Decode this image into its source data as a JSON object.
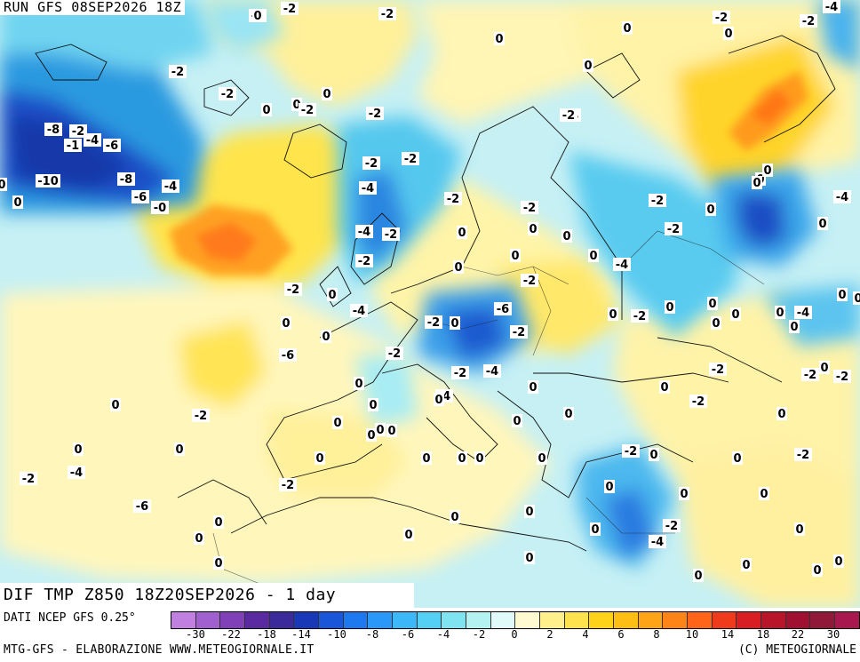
{
  "run_label": "RUN GFS 08SEP2026 18Z",
  "title": "DIF TMP Z850 18Z20SEP2026 - 1 day",
  "source": "DATI NCEP GFS 0.25°",
  "credit": "MTG-GFS - ELABORAZIONE WWW.METEOGIORNALE.IT",
  "copyright": "(C) METEOGIORNALE",
  "legend": {
    "colors": [
      "#c080e0",
      "#a060d0",
      "#8040b8",
      "#5a2aa0",
      "#3a2a9a",
      "#1838b8",
      "#1a56d8",
      "#1e78f0",
      "#2a98f8",
      "#3cb8f8",
      "#54d0f4",
      "#80e4f0",
      "#b4f2f2",
      "#e0fafa",
      "#fffad0",
      "#fff08c",
      "#ffe34e",
      "#ffd21a",
      "#ffbe14",
      "#ffa416",
      "#ff8418",
      "#ff6418",
      "#f03a1c",
      "#d81e22",
      "#b8142a",
      "#a01030",
      "#901838",
      "#a8184e"
    ],
    "tick_labels": [
      "-30",
      "-22",
      "-18",
      "-14",
      "-10",
      "-8",
      "-6",
      "-4",
      "-2",
      "0",
      "2",
      "4",
      "6",
      "8",
      "10",
      "14",
      "18",
      "22",
      "30"
    ]
  },
  "map": {
    "ocean_base": "#bfeef3",
    "land_base": "#fff4b0",
    "value_labels": [
      "-2",
      "-2",
      "-2",
      "-2",
      "-4",
      "-4",
      "-4",
      "-2",
      "-2",
      "-2",
      "0",
      "0",
      "0",
      "0",
      "-2",
      "-2",
      "0",
      "0",
      "0",
      "-2",
      "0",
      "-2",
      "-2",
      "0",
      "-8",
      "-2",
      "-1",
      "-4",
      "-6",
      "-4",
      "-10",
      "-8",
      "-6",
      "-4",
      "-0",
      "0",
      "0",
      "-2",
      "-2",
      "-4",
      "-2",
      "-2",
      "0",
      "-4",
      "-2",
      "0",
      "-2",
      "-4",
      "0",
      "0",
      "0",
      "0",
      "-4",
      "0",
      "-2",
      "-2",
      "0",
      "-6",
      "-2",
      "0",
      "-2",
      "-4",
      "-6",
      "-2",
      "0",
      "0",
      "0",
      "0",
      "-4",
      "0",
      "-2",
      "-2",
      "0",
      "-2",
      "0",
      "-2",
      "0",
      "-2",
      "-2",
      "0",
      "-2",
      "-4",
      "0",
      "0",
      "0",
      "-2",
      "-4",
      "0",
      "0",
      "0",
      "-2",
      "0",
      "0",
      "0",
      "0",
      "-4",
      "-2",
      "-6",
      "-2",
      "0",
      "0",
      "0",
      "0",
      "0",
      "0",
      "0",
      "0",
      "0",
      "0",
      "0",
      "0",
      "0",
      "0",
      "0",
      "0",
      "0",
      "0",
      "0",
      "0",
      "0",
      "0",
      "0",
      "0",
      "0",
      "0",
      "0",
      "0",
      "0",
      "0",
      "0",
      "-2",
      "0",
      "0",
      "0"
    ]
  }
}
